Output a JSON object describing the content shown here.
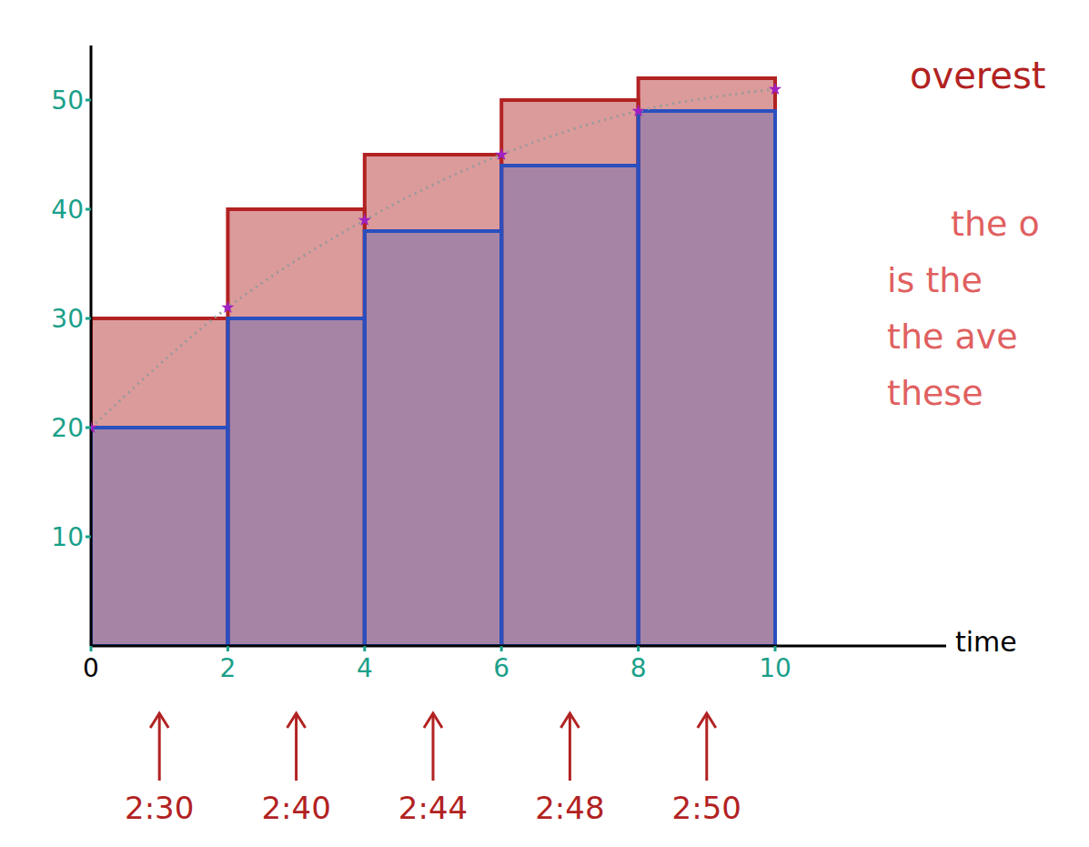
{
  "chart_data": {
    "type": "bar",
    "bins": [
      0,
      2,
      4,
      6,
      8,
      10
    ],
    "xlim": [
      0,
      12.5
    ],
    "xticks": [
      0,
      2,
      4,
      6,
      8,
      10
    ],
    "ylim": [
      0,
      55
    ],
    "yticks": [
      10,
      20,
      30,
      40,
      50
    ],
    "x_label": "time",
    "series": [
      {
        "color": "#b22222",
        "values": [
          30,
          40,
          45,
          50,
          52
        ]
      },
      {
        "color": "#2a4fbf",
        "values": [
          20,
          30,
          38,
          44,
          49
        ]
      }
    ],
    "points": {
      "x": [
        0,
        2,
        4,
        6,
        8,
        10
      ],
      "values": [
        20,
        31,
        39,
        45,
        49,
        51
      ],
      "color": "#a020c0",
      "marker": "star"
    },
    "curve": {
      "color": "#999999",
      "line_style": "dotted"
    },
    "interval_labels": [
      "2:30",
      "2:40",
      "2:44",
      "2:48",
      "2:50"
    ],
    "annotations": [
      "overest",
      "the o",
      "is the",
      "the ave",
      "these"
    ]
  }
}
